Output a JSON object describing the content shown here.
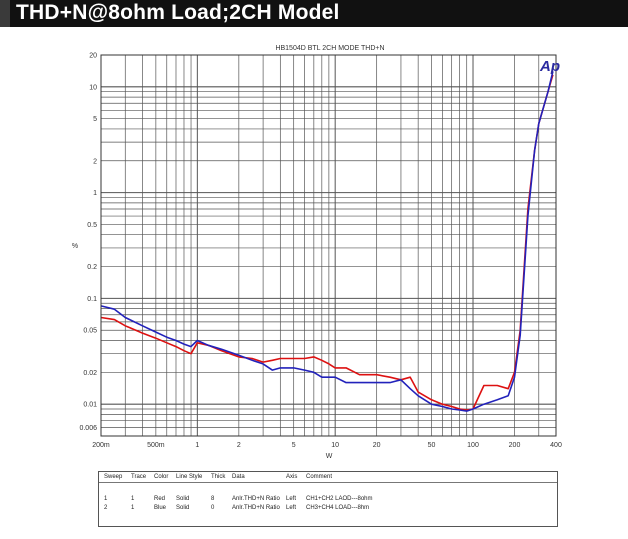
{
  "banner": {
    "title": "THD+N@8ohm  Load;2CH Model"
  },
  "chart_data": {
    "type": "line",
    "title": "HB1504D  BTL  2CH  MODE  THD+N",
    "xlabel": "W",
    "ylabel": "%",
    "xscale": "log",
    "yscale": "log",
    "xlim": [
      0.2,
      400
    ],
    "ylim": [
      0.005,
      20
    ],
    "grid": true,
    "x_ticks": [
      {
        "v": 0.2,
        "label": "200m"
      },
      {
        "v": 0.5,
        "label": "500m"
      },
      {
        "v": 1,
        "label": "1"
      },
      {
        "v": 2,
        "label": "2"
      },
      {
        "v": 5,
        "label": "5"
      },
      {
        "v": 10,
        "label": "10"
      },
      {
        "v": 20,
        "label": "20"
      },
      {
        "v": 50,
        "label": "50"
      },
      {
        "v": 100,
        "label": "100"
      },
      {
        "v": 200,
        "label": "200"
      },
      {
        "v": 400,
        "label": "400"
      }
    ],
    "y_ticks": [
      {
        "v": 20,
        "label": "20"
      },
      {
        "v": 10,
        "label": "10"
      },
      {
        "v": 5,
        "label": "5"
      },
      {
        "v": 2,
        "label": "2"
      },
      {
        "v": 1,
        "label": "1"
      },
      {
        "v": 0.5,
        "label": "0.5"
      },
      {
        "v": 0.2,
        "label": "0.2"
      },
      {
        "v": 0.1,
        "label": "0.1"
      },
      {
        "v": 0.05,
        "label": "0.05"
      },
      {
        "v": 0.02,
        "label": "0.02"
      },
      {
        "v": 0.01,
        "label": "0.01"
      },
      {
        "v": 0.006,
        "label": "0.006"
      }
    ],
    "logo": "Ap",
    "series": [
      {
        "color": "#dd1111",
        "x": [
          0.2,
          0.25,
          0.3,
          0.4,
          0.5,
          0.6,
          0.7,
          0.8,
          0.9,
          1.0,
          1.2,
          1.5,
          2,
          2.5,
          3,
          3.5,
          4,
          5,
          6,
          7,
          8,
          9,
          10,
          12,
          15,
          20,
          25,
          30,
          35,
          40,
          50,
          60,
          70,
          80,
          90,
          100,
          120,
          150,
          180,
          200,
          220,
          250,
          280,
          300,
          350,
          380
        ],
        "y": [
          0.066,
          0.063,
          0.055,
          0.047,
          0.042,
          0.038,
          0.035,
          0.032,
          0.03,
          0.038,
          0.036,
          0.032,
          0.028,
          0.027,
          0.025,
          0.026,
          0.027,
          0.027,
          0.027,
          0.028,
          0.026,
          0.024,
          0.022,
          0.022,
          0.019,
          0.019,
          0.018,
          0.017,
          0.018,
          0.013,
          0.011,
          0.01,
          0.0095,
          0.009,
          0.0088,
          0.009,
          0.015,
          0.015,
          0.014,
          0.02,
          0.05,
          0.7,
          2.5,
          4.5,
          9,
          13
        ]
      },
      {
        "color": "#2222bb",
        "x": [
          0.2,
          0.25,
          0.3,
          0.4,
          0.5,
          0.6,
          0.7,
          0.8,
          0.9,
          1.0,
          1.2,
          1.5,
          2,
          2.5,
          3,
          3.5,
          4,
          5,
          6,
          7,
          8,
          9,
          10,
          12,
          15,
          20,
          25,
          30,
          35,
          40,
          50,
          60,
          70,
          80,
          90,
          100,
          120,
          150,
          180,
          200,
          220,
          250,
          280,
          300,
          350,
          380
        ],
        "y": [
          0.085,
          0.079,
          0.066,
          0.055,
          0.048,
          0.043,
          0.04,
          0.037,
          0.035,
          0.04,
          0.036,
          0.033,
          0.029,
          0.026,
          0.024,
          0.021,
          0.022,
          0.022,
          0.021,
          0.02,
          0.018,
          0.018,
          0.018,
          0.016,
          0.016,
          0.016,
          0.016,
          0.017,
          0.014,
          0.012,
          0.01,
          0.0095,
          0.009,
          0.0088,
          0.0086,
          0.009,
          0.01,
          0.011,
          0.012,
          0.018,
          0.045,
          0.6,
          2.5,
          4.5,
          9,
          14
        ]
      }
    ]
  },
  "legend": {
    "headers": [
      "Sweep",
      "Trace",
      "Color",
      "Line Style",
      "Thick",
      "Data",
      "Axis",
      "Comment"
    ],
    "rows": [
      [
        "1",
        "1",
        "Red",
        "Solid",
        "8",
        "Anlr.THD+N Ratio",
        "Left",
        "CH1+CH2  LAOD---8ohm"
      ],
      [
        "2",
        "1",
        "Blue",
        "Solid",
        "0",
        "Anlr.THD+N Ratio",
        "Left",
        "CH3+CH4  LOAD---8hm"
      ]
    ]
  }
}
